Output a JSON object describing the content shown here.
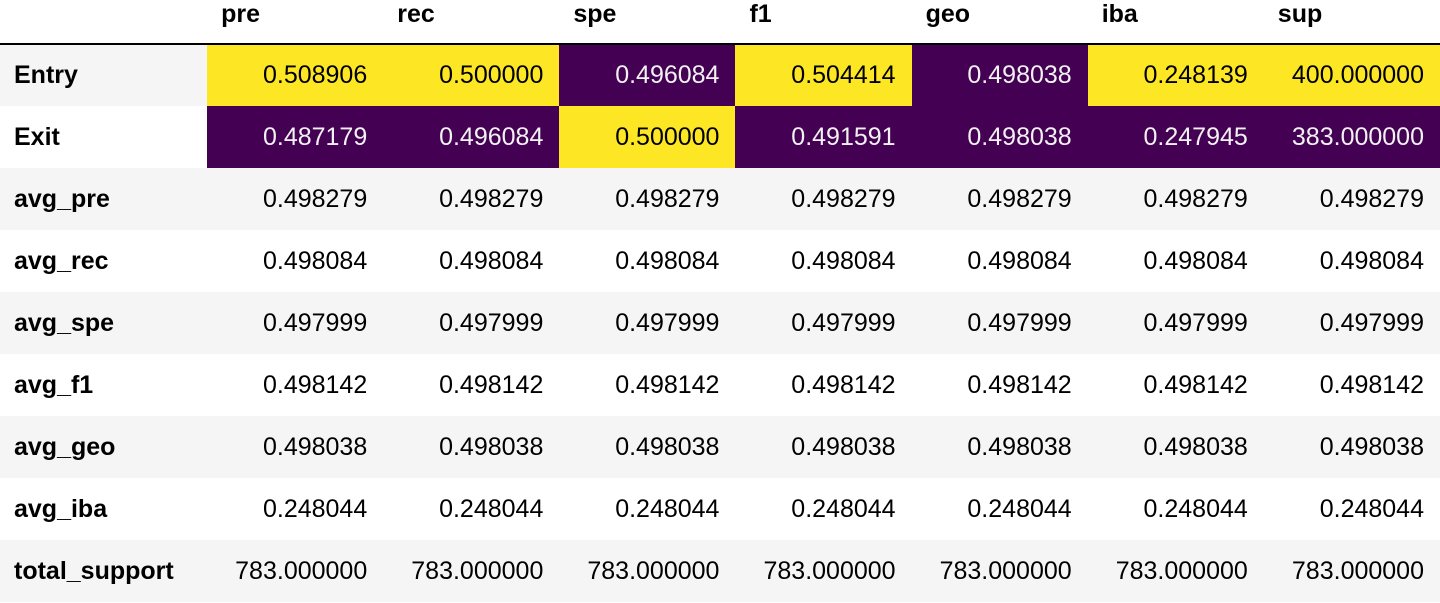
{
  "table": {
    "columns": [
      "pre",
      "rec",
      "spe",
      "f1",
      "geo",
      "iba",
      "sup"
    ],
    "rows": [
      {
        "label": "Entry",
        "values": [
          "0.508906",
          "0.500000",
          "0.496084",
          "0.504414",
          "0.498038",
          "0.248139",
          "400.000000"
        ],
        "highlight": [
          "hi",
          "hi",
          "lo",
          "hi",
          "lo",
          "hi",
          "hi"
        ]
      },
      {
        "label": "Exit",
        "values": [
          "0.487179",
          "0.496084",
          "0.500000",
          "0.491591",
          "0.498038",
          "0.247945",
          "383.000000"
        ],
        "highlight": [
          "lo",
          "lo",
          "hi",
          "lo",
          "lo",
          "lo",
          "lo"
        ]
      },
      {
        "label": "avg_pre",
        "values": [
          "0.498279",
          "0.498279",
          "0.498279",
          "0.498279",
          "0.498279",
          "0.498279",
          "0.498279"
        ]
      },
      {
        "label": "avg_rec",
        "values": [
          "0.498084",
          "0.498084",
          "0.498084",
          "0.498084",
          "0.498084",
          "0.498084",
          "0.498084"
        ]
      },
      {
        "label": "avg_spe",
        "values": [
          "0.497999",
          "0.497999",
          "0.497999",
          "0.497999",
          "0.497999",
          "0.497999",
          "0.497999"
        ]
      },
      {
        "label": "avg_f1",
        "values": [
          "0.498142",
          "0.498142",
          "0.498142",
          "0.498142",
          "0.498142",
          "0.498142",
          "0.498142"
        ]
      },
      {
        "label": "avg_geo",
        "values": [
          "0.498038",
          "0.498038",
          "0.498038",
          "0.498038",
          "0.498038",
          "0.498038",
          "0.498038"
        ]
      },
      {
        "label": "avg_iba",
        "values": [
          "0.248044",
          "0.248044",
          "0.248044",
          "0.248044",
          "0.248044",
          "0.248044",
          "0.248044"
        ]
      },
      {
        "label": "total_support",
        "values": [
          "783.000000",
          "783.000000",
          "783.000000",
          "783.000000",
          "783.000000",
          "783.000000",
          "783.000000"
        ]
      }
    ]
  },
  "colors": {
    "highlight_high": "#fde725",
    "highlight_low": "#440154",
    "stripe": "#f5f5f5"
  }
}
